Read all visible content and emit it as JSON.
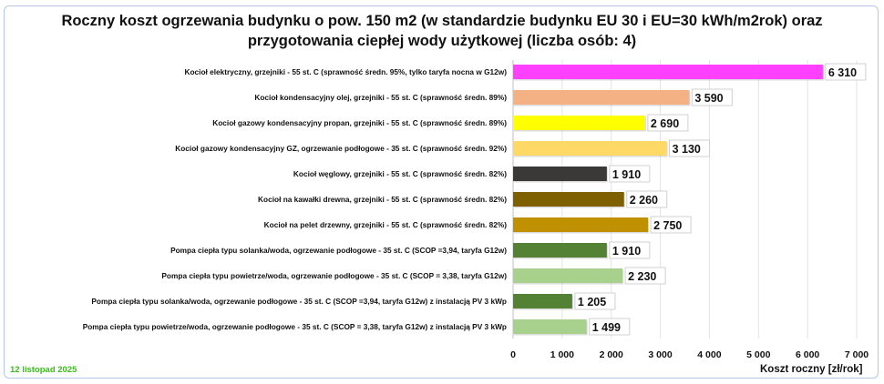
{
  "chart_data": {
    "type": "bar",
    "orientation": "horizontal",
    "title_line1": "Roczny koszt ogrzewania budynku o pow. 150 m2 (w standardzie budynku EU 30 i EU=30 kWh/m2rok) oraz",
    "title_line2": "przygotowania ciepłej wody użytkowej (liczba osób: 4)",
    "xlabel": "Koszt roczny [zł/rok]",
    "xlim": [
      0,
      7000
    ],
    "xticks": [
      "0",
      "1 000",
      "2 000",
      "3 000",
      "4 000",
      "5 000",
      "6 000",
      "7 000"
    ],
    "grid": true,
    "categories": [
      "Kocioł  elektryczny,  grzejniki - 55 st. C  (sprawność średn. 95%, tylko taryfa nocna w G12w)",
      "Kocioł  kondensacyjny olej,  grzejniki - 55 st. C (sprawność średn. 89%)",
      "Kocioł gazowy kondensacyjny propan, grzejniki - 55 st. C (sprawność średn. 89%)",
      "Kocioł gazowy kondensacyjny GZ, ogrzewanie podłogowe - 35 st. C (sprawność średn. 92%)",
      "Kocioł węglowy,  grzejniki - 55 st. C (sprawność średn. 82%)",
      "Kocioł na kawałki drewna, grzejniki - 55 st. C (sprawność średn. 82%)",
      "Kocioł na pelet drzewny, grzejniki - 55 st. C (sprawność średn. 82%)",
      "Pompa ciepła typu solanka/woda, ogrzewanie podłogowe - 35 st. C (SCOP =3,94, taryfa G12w)",
      "Pompa ciepła typu powietrze/woda, ogrzewanie podłogowe - 35 st. C (SCOP = 3,38, taryfa G12w)",
      "Pompa ciepła typu solanka/woda, ogrzewanie podłogowe - 35 st. C (SCOP =3,94, taryfa G12w) z instalacją PV 3 kWp",
      "Pompa ciepła typu powietrze/woda, ogrzewanie podłogowe - 35 st. C (SCOP = 3,38, taryfa G12w) z instalacją PV 3 kWp"
    ],
    "values": [
      6310,
      3590,
      2690,
      3130,
      1910,
      2260,
      2750,
      1910,
      2230,
      1205,
      1499
    ],
    "value_labels": [
      "6 310",
      "3 590",
      "2 690",
      "3 130",
      "1 910",
      "2 260",
      "2 750",
      "1 910",
      "2 230",
      "1 205",
      "1 499"
    ],
    "colors": [
      "#ff40ff",
      "#f4b183",
      "#ffff00",
      "#ffd966",
      "#3b3838",
      "#7f6000",
      "#bf9000",
      "#548235",
      "#a9d18e",
      "#548235",
      "#a9d18e"
    ]
  },
  "footer": {
    "date": "12 listopad 2025"
  }
}
